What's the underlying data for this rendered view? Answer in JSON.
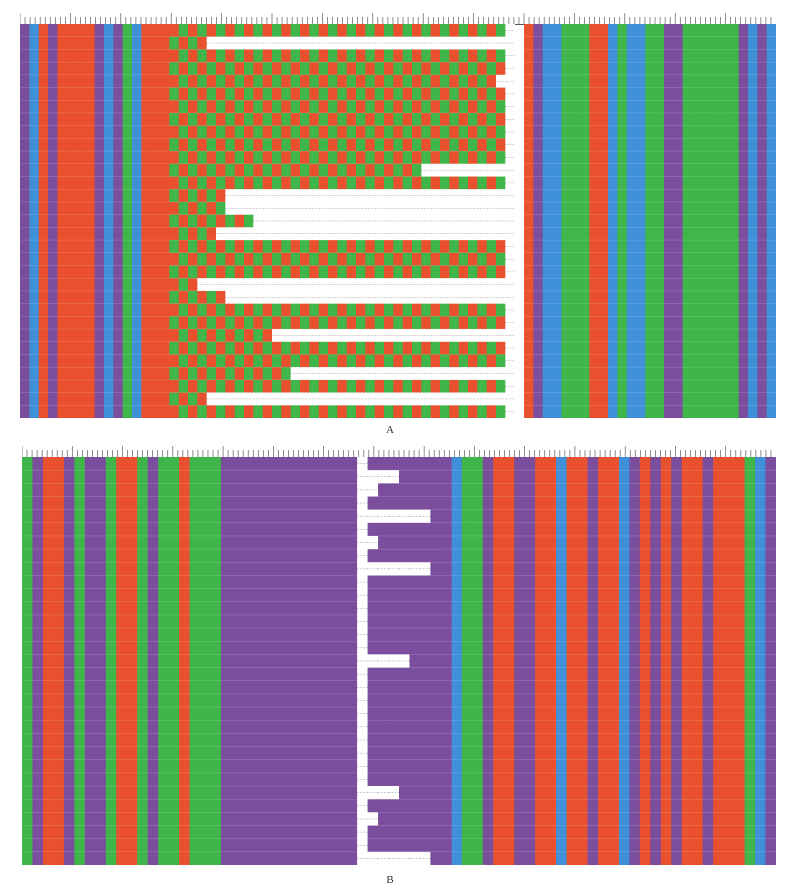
{
  "colors": {
    "A": "#3fb54a",
    "T": "#e8502e",
    "G": "#7a4e9c",
    "C": "#3f8fd9",
    "gap": "#ffffff",
    "ruler": "#444444"
  },
  "panels": [
    {
      "id": "A",
      "label": "A",
      "rows": 31,
      "columns": [
        "G",
        "C",
        "T",
        "G",
        "T",
        "T",
        "T",
        "T",
        "G",
        "C",
        "G",
        "A",
        "C",
        "T",
        "T",
        "T",
        "N",
        "N",
        "N",
        "N",
        "N",
        "N",
        "N",
        "N",
        "N",
        "N",
        "N",
        "N",
        "N",
        "N",
        "N",
        "N",
        "N",
        "N",
        "N",
        "N",
        "N",
        "N",
        "N",
        "N",
        "N",
        "N",
        "N",
        "N",
        "N",
        "N",
        "N",
        "N",
        "N",
        "N",
        "N",
        "N",
        "N",
        "N",
        "T",
        "G",
        "C",
        "C",
        "A",
        "A",
        "A",
        "T",
        "T",
        "C",
        "A",
        "C",
        "C",
        "A",
        "A",
        "G",
        "G",
        "A",
        "A",
        "A",
        "A",
        "A",
        "A",
        "G",
        "C",
        "G",
        "C"
      ],
      "repeat_motif": "TA",
      "insert_start_col": 16,
      "insert_end_col": 52,
      "row_insert_ranges": [
        [
          52,
          52
        ],
        [
          20,
          52
        ],
        [
          52,
          53
        ],
        [
          52,
          53
        ],
        [
          51,
          53
        ],
        [
          52,
          53
        ],
        [
          52,
          53
        ],
        [
          52,
          53
        ],
        [
          52,
          53
        ],
        [
          52,
          53
        ],
        [
          52,
          53
        ],
        [
          43,
          54
        ],
        [
          52,
          54
        ],
        [
          22,
          53
        ],
        [
          22,
          53
        ],
        [
          25,
          53
        ],
        [
          21,
          53
        ],
        [
          52,
          53
        ],
        [
          52,
          55
        ],
        [
          52,
          53
        ],
        [
          19,
          53
        ],
        [
          22,
          53
        ],
        [
          52,
          53
        ],
        [
          52,
          53
        ],
        [
          27,
          54
        ],
        [
          52,
          54
        ],
        [
          52,
          54
        ],
        [
          29,
          53
        ],
        [
          52,
          53
        ],
        [
          20,
          53
        ],
        [
          52,
          53
        ]
      ]
    },
    {
      "id": "B",
      "label": "B",
      "rows": 31,
      "columns": [
        "A",
        "G",
        "T",
        "T",
        "G",
        "A",
        "G",
        "G",
        "A",
        "T",
        "T",
        "A",
        "G",
        "A",
        "A",
        "T",
        "A",
        "A",
        "A",
        "G",
        "G",
        "G",
        "G",
        "G",
        "G",
        "G",
        "G",
        "G",
        "G",
        "G",
        "G",
        "G",
        "N",
        "N",
        "N",
        "N",
        "N",
        "N",
        "N",
        "N",
        "A",
        "C",
        "A",
        "A",
        "G",
        "T",
        "T",
        "G",
        "G",
        "T",
        "T",
        "C",
        "T",
        "T",
        "G",
        "T",
        "T",
        "C",
        "G",
        "T",
        "G",
        "T",
        "G",
        "T",
        "T",
        "G",
        "T",
        "T",
        "T",
        "A",
        "C",
        "G"
      ],
      "repeat_motif": "G",
      "insert_start_col": 32,
      "insert_end_col": 40,
      "row_insert_ranges": [
        [
          32,
          32
        ],
        [
          32,
          35
        ],
        [
          32,
          33
        ],
        [
          32,
          32
        ],
        [
          32,
          38
        ],
        [
          32,
          32
        ],
        [
          32,
          33
        ],
        [
          32,
          32
        ],
        [
          32,
          38
        ],
        [
          32,
          32
        ],
        [
          32,
          32
        ],
        [
          32,
          32
        ],
        [
          32,
          32
        ],
        [
          32,
          32
        ],
        [
          32,
          32
        ],
        [
          32,
          36
        ],
        [
          32,
          32
        ],
        [
          32,
          32
        ],
        [
          31,
          32
        ],
        [
          31,
          32
        ],
        [
          31,
          32
        ],
        [
          31,
          32
        ],
        [
          31,
          32
        ],
        [
          31,
          32
        ],
        [
          32,
          32
        ],
        [
          32,
          35
        ],
        [
          32,
          32
        ],
        [
          32,
          33
        ],
        [
          32,
          32
        ],
        [
          32,
          32
        ],
        [
          32,
          38
        ]
      ]
    }
  ]
}
